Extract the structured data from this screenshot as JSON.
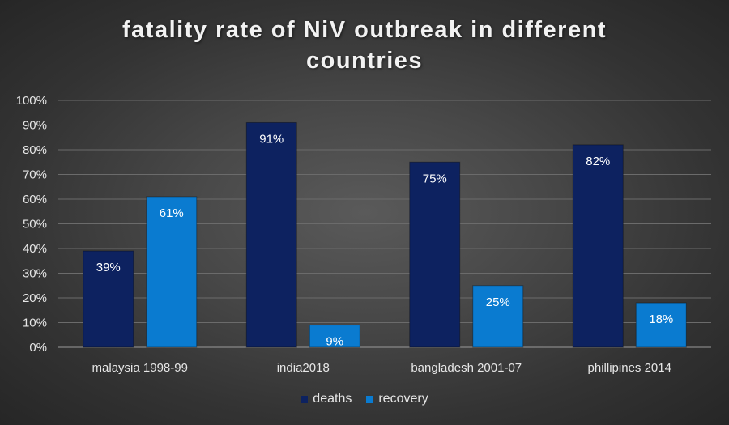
{
  "chart_data": {
    "type": "bar",
    "title": "fatality rate of NiV outbreak in different countries",
    "categories": [
      "malaysia 1998-99",
      "india2018",
      "bangladesh 2001-07",
      "phillipines 2014"
    ],
    "series": [
      {
        "name": "deaths",
        "values": [
          39,
          91,
          75,
          82
        ],
        "labels": [
          "39%",
          "91%",
          "75%",
          "82%"
        ],
        "color": "#0d2260"
      },
      {
        "name": "recovery",
        "values": [
          61,
          9,
          25,
          18
        ],
        "labels": [
          "61%",
          "9%",
          "25%",
          "18%"
        ],
        "color": "#0a7bd0"
      }
    ],
    "yticks": [
      "0%",
      "10%",
      "20%",
      "30%",
      "40%",
      "50%",
      "60%",
      "70%",
      "80%",
      "90%",
      "100%"
    ],
    "ylim": [
      0,
      100
    ],
    "grid": true,
    "legend": "bottom",
    "colors": {
      "text": "#e6e6e6",
      "grid": "#6b6b6b"
    }
  }
}
